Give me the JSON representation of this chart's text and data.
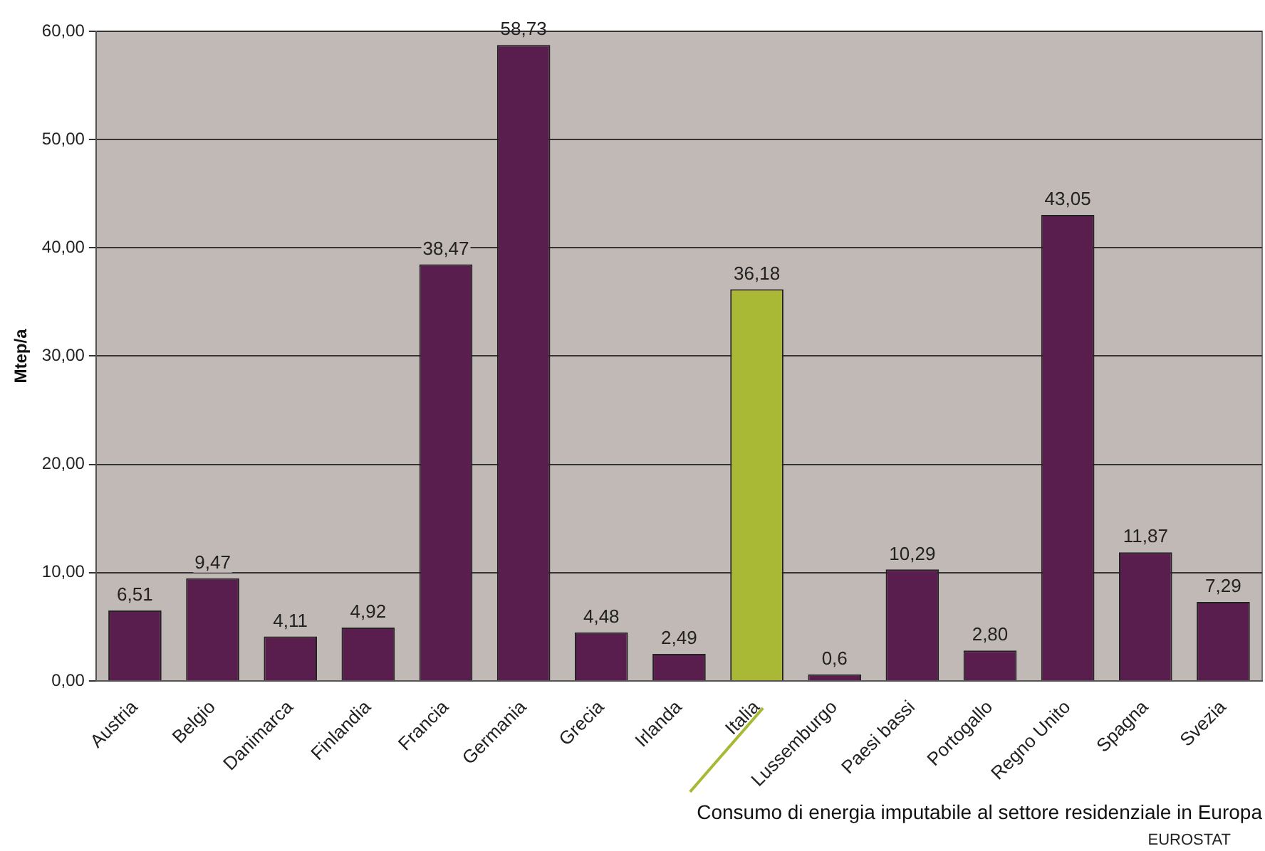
{
  "chart_data": {
    "type": "bar",
    "xlabel": "Consumo di energia imputabile al settore residenziale in Europa",
    "ylabel": "Mtep/a",
    "categories": [
      "Austria",
      "Belgio",
      "Danimarca",
      "Finlandia",
      "Francia",
      "Germania",
      "Grecia",
      "Irlanda",
      "Italia",
      "Lussemburgo",
      "Paesi bassi",
      "Portogallo",
      "Regno Unito",
      "Spagna",
      "Svezia"
    ],
    "values": [
      6.51,
      9.47,
      4.11,
      4.92,
      38.47,
      58.73,
      4.48,
      2.49,
      36.18,
      0.6,
      10.29,
      2.8,
      43.05,
      11.87,
      7.29
    ],
    "value_labels": [
      "6,51",
      "9,47",
      "4,11",
      "4,92",
      "38,47",
      "58,73",
      "4,48",
      "2,49",
      "36,18",
      "0,6",
      "10,29",
      "2,80",
      "43,05",
      "11,87",
      "7,29"
    ],
    "colors": [
      "#5a1e4e",
      "#5a1e4e",
      "#5a1e4e",
      "#5a1e4e",
      "#5a1e4e",
      "#5a1e4e",
      "#5a1e4e",
      "#5a1e4e",
      "#a9b935",
      "#5a1e4e",
      "#5a1e4e",
      "#5a1e4e",
      "#5a1e4e",
      "#5a1e4e",
      "#5a1e4e"
    ],
    "ylim": [
      0,
      60
    ],
    "yticks": [
      {
        "value": 0,
        "label": "0,00"
      },
      {
        "value": 10,
        "label": "10,00"
      },
      {
        "value": 20,
        "label": "20,00"
      },
      {
        "value": 30,
        "label": "30,00"
      },
      {
        "value": 40,
        "label": "40,00"
      },
      {
        "value": 50,
        "label": "50,00"
      },
      {
        "value": 60,
        "label": "60,00"
      }
    ],
    "grid": "y",
    "legend": false,
    "annotations": [
      "EUROSTAT"
    ]
  }
}
